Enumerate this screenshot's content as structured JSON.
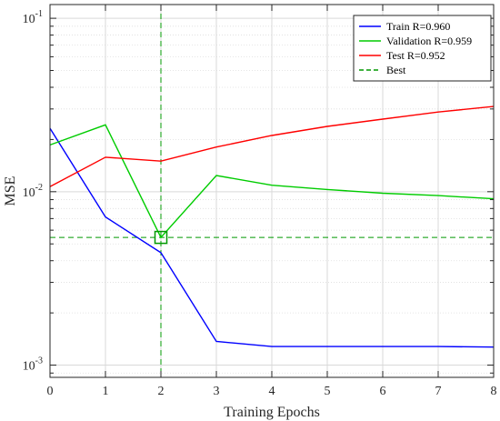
{
  "chart_data": {
    "type": "line",
    "xlabel": "Training Epochs",
    "ylabel": "MSE",
    "xlim": [
      0,
      8
    ],
    "ylim": [
      0.00085,
      0.12
    ],
    "yscale": "log",
    "grid": true,
    "legend_position": "top-right",
    "x_ticks": [
      "0",
      "1",
      "2",
      "3",
      "4",
      "5",
      "6",
      "7",
      "8"
    ],
    "y_ticks": [
      {
        "value": 0.1,
        "base": "10",
        "exp": "-1"
      },
      {
        "value": 0.01,
        "base": "10",
        "exp": "-2"
      },
      {
        "value": 0.001,
        "base": "10",
        "exp": "-3"
      }
    ],
    "series": [
      {
        "name": "Train  R=0.960",
        "color": "#0000ff",
        "x": [
          0,
          1,
          2,
          3,
          4,
          5,
          6,
          7,
          8
        ],
        "values": [
          0.0232,
          0.00715,
          0.00445,
          0.00137,
          0.00128,
          0.00128,
          0.00128,
          0.00128,
          0.00127
        ]
      },
      {
        "name": "Validation  R=0.959",
        "color": "#00cc00",
        "x": [
          0,
          1,
          2,
          3,
          4,
          5,
          6,
          7,
          8
        ],
        "values": [
          0.0186,
          0.0243,
          0.00545,
          0.0124,
          0.0109,
          0.0103,
          0.0098,
          0.0095,
          0.0091
        ]
      },
      {
        "name": "Test  R=0.952",
        "color": "#ff0000",
        "x": [
          0,
          1,
          2,
          3,
          4,
          5,
          6,
          7,
          8
        ],
        "values": [
          0.0107,
          0.0158,
          0.015,
          0.0181,
          0.0211,
          0.0238,
          0.0262,
          0.0288,
          0.031
        ]
      }
    ],
    "best": {
      "name": "Best",
      "x": 2,
      "y": 0.00545,
      "color": "#009900"
    }
  }
}
